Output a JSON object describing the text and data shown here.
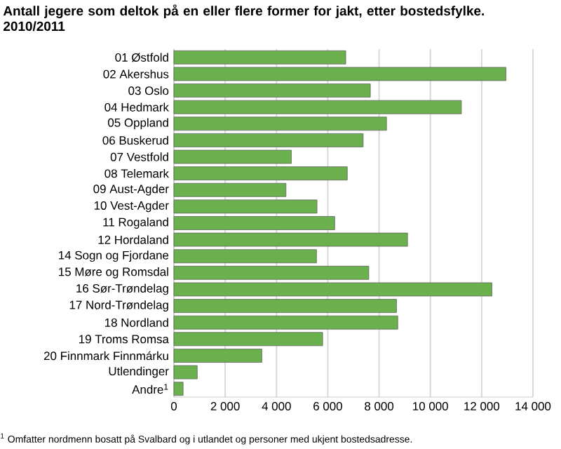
{
  "chart_data": {
    "type": "bar",
    "orientation": "horizontal",
    "title": "Antall jegere som deltok på en eller flere former for jakt, etter bostedsfylke. 2010/2011",
    "categories": [
      "01 Østfold",
      "02 Akershus",
      "03 Oslo",
      "04 Hedmark",
      "05 Oppland",
      "06 Buskerud",
      "07 Vestfold",
      "08 Telemark",
      "09 Aust-Agder",
      "10 Vest-Agder",
      "11 Rogaland",
      "12 Hordaland",
      "14 Sogn og Fjordane",
      "15 Møre og Romsdal",
      "16 Sør-Trøndelag",
      "17 Nord-Trøndelag",
      "18 Nordland",
      "19 Troms Romsa",
      "20 Finnmark Finnmárku",
      "Utlendinger",
      "Andre$^{1}$"
    ],
    "values": [
      6700,
      12950,
      7660,
      11210,
      8290,
      7380,
      4580,
      6760,
      4370,
      5580,
      6270,
      9110,
      5560,
      7600,
      12400,
      8680,
      8730,
      5800,
      3430,
      910,
      360
    ],
    "color": "#6ab04c",
    "xlim": [
      0,
      14000
    ],
    "xticks": [
      0,
      {
        "value": 2000,
        "label": "2 000"
      },
      {
        "value": 4000,
        "label": "4 000"
      },
      {
        "value": 6000,
        "label": "6 000"
      },
      {
        "value": 8000,
        "label": "8 000"
      },
      {
        "value": 10000,
        "label": "10 000"
      },
      {
        "value": 12000,
        "label": "12 000"
      },
      {
        "value": 14000,
        "label": "14 000"
      }
    ],
    "grid": "x",
    "annotations": [
      "$^{1}$ Omfatter nordmenn bosatt på Svalbard og i utlandet og personer med ukjent bostedsadresse."
    ]
  }
}
